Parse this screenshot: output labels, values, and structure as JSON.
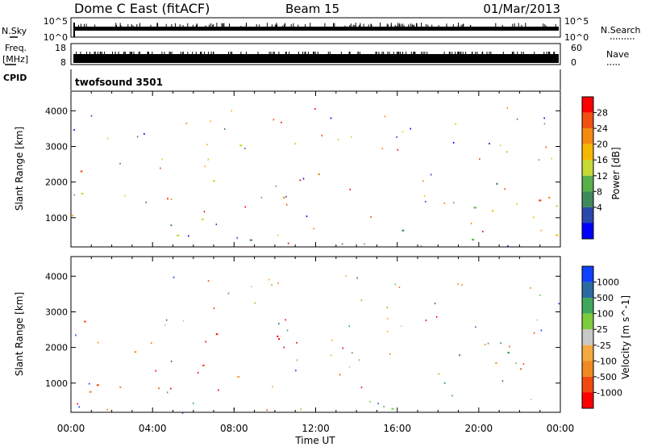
{
  "header": {
    "station": "Dome C East (fitACF)",
    "beam": "Beam 15",
    "date": "01/Mar/2013"
  },
  "strips": {
    "nsky": {
      "label": "N.Sky",
      "tick_top": "10^5",
      "tick_bottom": "10^0",
      "right_label": "N.Search",
      "right_tick_top": "10^5",
      "right_tick_bottom": "10^0"
    },
    "freq": {
      "label_line1": "Freq.",
      "label_line2": "[MHz]",
      "tick_top": "18",
      "tick_bottom": "8",
      "right_label": "Nave",
      "right_tick_top": "60",
      "right_tick_bottom": "0"
    },
    "cpid": {
      "label": "CPID",
      "program": "twofsound 3501"
    }
  },
  "colors": {
    "power_scale": [
      "#0000ff",
      "#2a49ad",
      "#3f8a5a",
      "#5ab04a",
      "#c8d834",
      "#f5b800",
      "#f58a10",
      "#f05010",
      "#ff0000"
    ],
    "velocity_scale": [
      "#ff0000",
      "#f04a10",
      "#f08a20",
      "#f5aa40",
      "#c8c8c8",
      "#7ecb3c",
      "#3fa85a",
      "#2a6aa0",
      "#1040ff"
    ]
  },
  "chart_data": [
    {
      "type": "heatmap",
      "title": "Power",
      "xlabel": "",
      "ylabel": "Slant Range [km]",
      "x_ticks": [
        "00:00",
        "04:00",
        "08:00",
        "12:00",
        "16:00",
        "20:00",
        "00:00"
      ],
      "x_range_hours": [
        0,
        24
      ],
      "y_ticks": [
        1000,
        2000,
        3000,
        4000
      ],
      "ylim": [
        180,
        4550
      ],
      "colorbar": {
        "label": "Power [dB]",
        "ticks": [
          "4",
          "8",
          "12",
          "16",
          "20",
          "24",
          "28"
        ]
      },
      "regions": [
        {
          "t0": 0.0,
          "t1": 2.3,
          "r0": 300,
          "r1": 3200,
          "level": 0.65
        },
        {
          "t0": 2.3,
          "t1": 5.5,
          "r0": 300,
          "r1": 3000,
          "level": 0.5
        },
        {
          "t0": 5.5,
          "t1": 8.5,
          "r0": 700,
          "r1": 3700,
          "level": 0.55
        },
        {
          "t0": 8.5,
          "t1": 9.0,
          "r0": 300,
          "r1": 3200,
          "level": 0.2
        },
        {
          "t0": 10.0,
          "t1": 12.8,
          "r0": 500,
          "r1": 2500,
          "level": 0.8
        },
        {
          "t0": 13.0,
          "t1": 17.0,
          "r0": 250,
          "r1": 1100,
          "level": 0.3
        },
        {
          "t0": 17.0,
          "t1": 17.6,
          "r0": 500,
          "r1": 2000,
          "level": 0.5
        },
        {
          "t0": 18.0,
          "t1": 24.0,
          "r0": 250,
          "r1": 2500,
          "level": 0.6
        },
        {
          "t0": 18.2,
          "t1": 19.4,
          "r0": 250,
          "r1": 900,
          "level": 0.95
        },
        {
          "t0": 20.0,
          "t1": 23.8,
          "r0": 1200,
          "r1": 3000,
          "level": 0.45
        }
      ]
    },
    {
      "type": "heatmap",
      "title": "Velocity",
      "xlabel": "Time UT",
      "ylabel": "Slant Range [km]",
      "x_ticks": [
        "00:00",
        "04:00",
        "08:00",
        "12:00",
        "16:00",
        "20:00",
        "00:00"
      ],
      "x_range_hours": [
        0,
        24
      ],
      "y_ticks": [
        1000,
        2000,
        3000,
        4000
      ],
      "ylim": [
        180,
        4550
      ],
      "colorbar": {
        "label": "Velocity [m s^-1]",
        "ticks": [
          "1000",
          "500",
          "100",
          "25",
          "-25",
          "-100",
          "-500",
          "-1000"
        ]
      },
      "regions": [
        {
          "t0": 0.0,
          "t1": 2.3,
          "r0": 300,
          "r1": 3200,
          "level": 0.35
        },
        {
          "t0": 2.3,
          "t1": 5.5,
          "r0": 300,
          "r1": 3000,
          "level": 0.28
        },
        {
          "t0": 5.5,
          "t1": 8.5,
          "r0": 700,
          "r1": 3700,
          "level": 0.3
        },
        {
          "t0": 10.0,
          "t1": 12.8,
          "r0": 500,
          "r1": 2500,
          "level": 0.3
        },
        {
          "t0": 13.0,
          "t1": 17.0,
          "r0": 250,
          "r1": 1100,
          "level": 0.6
        },
        {
          "t0": 18.0,
          "t1": 24.0,
          "r0": 250,
          "r1": 2500,
          "level": 0.6
        },
        {
          "t0": 20.0,
          "t1": 23.8,
          "r0": 1200,
          "r1": 3000,
          "level": 0.45
        }
      ]
    }
  ]
}
